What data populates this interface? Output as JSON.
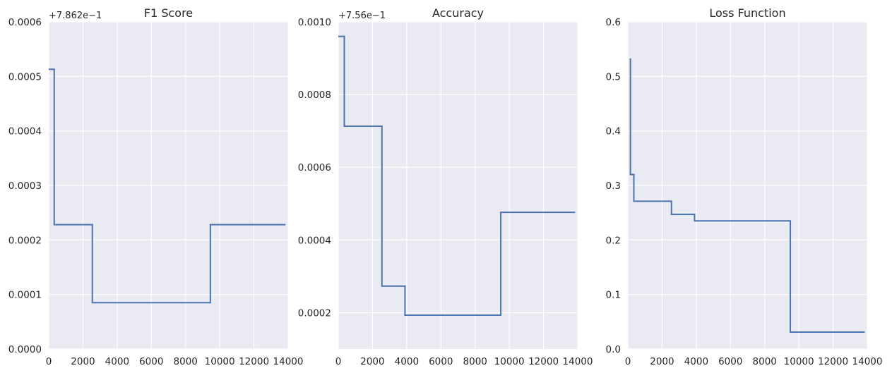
{
  "chart_data": [
    {
      "type": "line",
      "drawstyle": "step",
      "title": "F1 Score",
      "offset_text": "+7.862e−1",
      "xlabel": "",
      "ylabel": "",
      "xlim": [
        0,
        14000
      ],
      "ylim": [
        0,
        0.0006
      ],
      "grid": true,
      "xticks": [
        0,
        2000,
        4000,
        6000,
        8000,
        10000,
        12000,
        14000
      ],
      "xtick_labels": [
        "0",
        "2000",
        "4000",
        "6000",
        "8000",
        "10000",
        "12000",
        "14000"
      ],
      "yticks": [
        0,
        0.0001,
        0.0002,
        0.0003,
        0.0004,
        0.0005,
        0.0006
      ],
      "ytick_labels": [
        "0.0000",
        "0.0001",
        "0.0002",
        "0.0003",
        "0.0004",
        "0.0005",
        "0.0006"
      ],
      "series": [
        {
          "color": "#4c72b0",
          "x": [
            0,
            320,
            320,
            2550,
            2550,
            9450,
            9450,
            13850
          ],
          "y": [
            0.000513,
            0.000513,
            0.000228,
            0.000228,
            8.5e-05,
            8.5e-05,
            0.000228,
            0.000228
          ]
        }
      ]
    },
    {
      "type": "line",
      "drawstyle": "step",
      "title": "Accuracy",
      "offset_text": "+7.56e−1",
      "xlabel": "",
      "ylabel": "",
      "xlim": [
        0,
        14000
      ],
      "ylim": [
        0.0001,
        0.001
      ],
      "grid": true,
      "xticks": [
        0,
        2000,
        4000,
        6000,
        8000,
        10000,
        12000,
        14000
      ],
      "xtick_labels": [
        "0",
        "2000",
        "4000",
        "6000",
        "8000",
        "10000",
        "12000",
        "14000"
      ],
      "yticks": [
        0.0002,
        0.0004,
        0.0006,
        0.0008,
        0.001
      ],
      "ytick_labels": [
        "0.0002",
        "0.0004",
        "0.0006",
        "0.0008",
        "0.0010"
      ],
      "series": [
        {
          "color": "#4c72b0",
          "x": [
            0,
            350,
            350,
            2550,
            2550,
            3900,
            3900,
            9500,
            9500,
            13850
          ],
          "y": [
            0.00096,
            0.00096,
            0.000713,
            0.000713,
            0.000273,
            0.000273,
            0.000193,
            0.000193,
            0.000476,
            0.000476
          ]
        }
      ]
    },
    {
      "type": "line",
      "drawstyle": "step",
      "title": "Loss Function",
      "xlabel": "",
      "ylabel": "",
      "xlim": [
        0,
        14000
      ],
      "ylim": [
        0,
        0.6
      ],
      "grid": true,
      "xticks": [
        0,
        2000,
        4000,
        6000,
        8000,
        10000,
        12000,
        14000
      ],
      "xtick_labels": [
        "0",
        "2000",
        "4000",
        "6000",
        "8000",
        "10000",
        "12000",
        "14000"
      ],
      "yticks": [
        0,
        0.1,
        0.2,
        0.3,
        0.4,
        0.5,
        0.6
      ],
      "ytick_labels": [
        "0.0",
        "0.1",
        "0.2",
        "0.3",
        "0.4",
        "0.5",
        "0.6"
      ],
      "series": [
        {
          "color": "#4c72b0",
          "x": [
            150,
            150,
            350,
            350,
            2550,
            2550,
            3900,
            3900,
            9500,
            9500,
            13850
          ],
          "y": [
            0.533,
            0.32,
            0.32,
            0.271,
            0.271,
            0.247,
            0.247,
            0.235,
            0.235,
            0.031,
            0.031
          ]
        }
      ]
    }
  ]
}
